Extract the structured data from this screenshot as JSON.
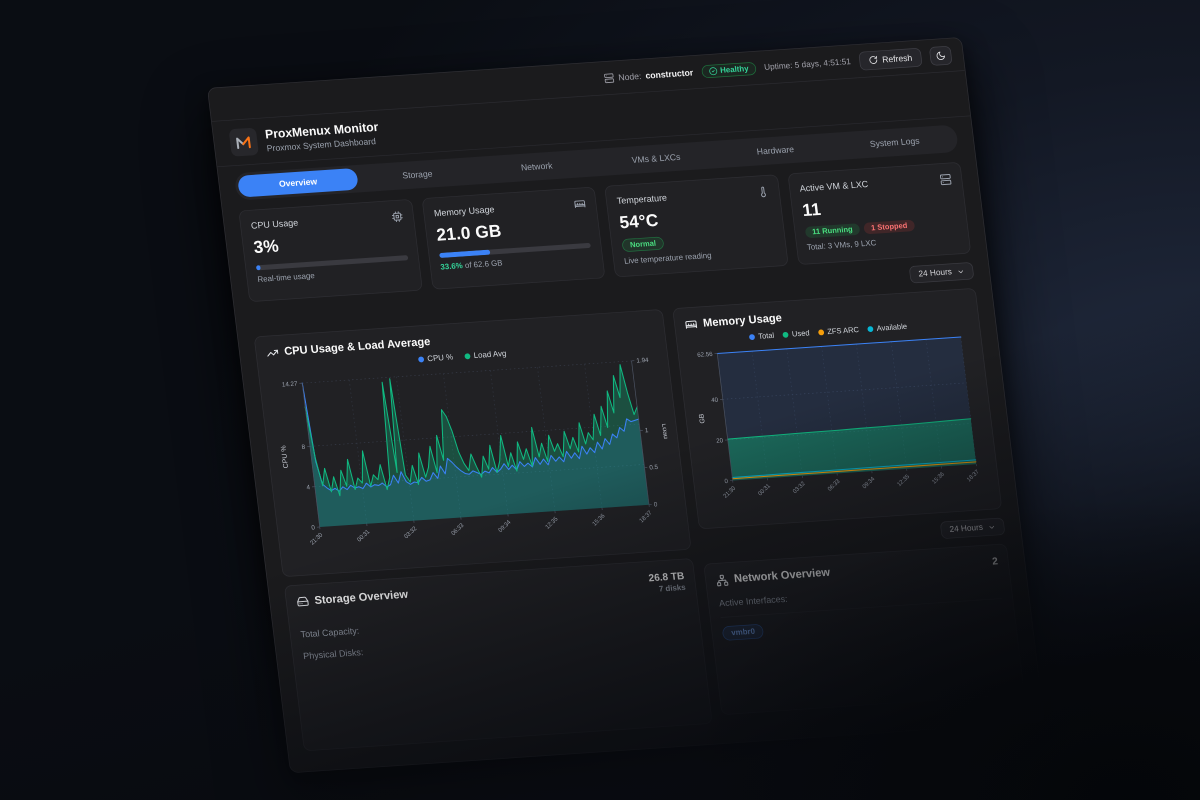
{
  "topbar": {
    "node_label": "Node:",
    "node_value": "constructor",
    "health": "Healthy",
    "uptime": "Uptime: 5 days, 4:51:51",
    "refresh": "Refresh"
  },
  "header": {
    "title": "ProxMenux Monitor",
    "subtitle": "Proxmox System Dashboard"
  },
  "tabs": [
    {
      "label": "Overview",
      "active": true
    },
    {
      "label": "Storage",
      "active": false
    },
    {
      "label": "Network",
      "active": false
    },
    {
      "label": "VMs & LXCs",
      "active": false
    },
    {
      "label": "Hardware",
      "active": false
    },
    {
      "label": "System Logs",
      "active": false
    }
  ],
  "stats": {
    "cpu": {
      "label": "CPU Usage",
      "value": "3%",
      "percent": 3,
      "subtext": "Real-time usage"
    },
    "memory": {
      "label": "Memory Usage",
      "value": "21.0 GB",
      "percent": 33.6,
      "used_pct": "33.6%",
      "of_text": "of 62.6 GB"
    },
    "temperature": {
      "label": "Temperature",
      "value": "54°C",
      "status": "Normal",
      "subtext": "Live temperature reading"
    },
    "vm": {
      "label": "Active VM & LXC",
      "value": "11",
      "running": "11 Running",
      "stopped": "1 Stopped",
      "subtext": "Total: 3 VMs, 9 LXC"
    }
  },
  "time_range": {
    "label": "24 Hours"
  },
  "time_range2": {
    "label": "24 Hours"
  },
  "storage": {
    "title": "Storage Overview",
    "summary_value": "26.8 TB",
    "summary_sub": "7 disks",
    "rows": [
      {
        "label": "Total Capacity:"
      },
      {
        "label": "Physical Disks:"
      }
    ]
  },
  "network": {
    "title": "Network Overview",
    "summary_value": "2",
    "rows": [
      {
        "label": "Active Interfaces:"
      }
    ],
    "badge": "vmbr0"
  },
  "colors": {
    "accent": "#3b82f6",
    "green": "#10b981",
    "amber": "#f59e0b",
    "cyan": "#06b6d4",
    "healthy": "#34d399",
    "danger": "#f87171"
  },
  "chart_data": [
    {
      "type": "line",
      "title": "CPU Usage & Load Average",
      "x_ticks": [
        "21:30",
        "00:31",
        "03:32",
        "06:33",
        "09:34",
        "12:35",
        "15:36",
        "18:37"
      ],
      "left_axis": {
        "label": "CPU %",
        "ticks": [
          0,
          4,
          8
        ],
        "max_tick": 14.27
      },
      "right_axis": {
        "label": "Load",
        "ticks": [
          0,
          0.5,
          1
        ],
        "max_tick": 1.94
      },
      "grid": true,
      "legend_position": "top",
      "series": [
        {
          "name": "CPU %",
          "color": "#3b82f6",
          "axis": "left",
          "fill": "rgba(59,130,246,0.20)",
          "values": [
            14.27,
            6.5,
            4.2,
            3.8,
            3.5,
            3.7,
            3.4,
            3.8,
            3.5,
            3.9,
            3.6,
            3.7,
            3.5,
            4.0,
            3.6,
            3.8,
            3.7,
            3.9,
            3.5,
            3.7,
            4.6,
            3.8,
            4.9,
            3.9,
            3.6,
            3.8,
            3.7,
            4.2,
            3.8,
            3.9,
            4.6,
            4.0,
            5.2,
            4.4,
            5.9,
            5.5,
            5.0,
            4.6,
            4.3,
            4.2,
            4.5,
            4.3,
            4.1,
            4.4,
            4.2,
            4.7,
            4.2,
            4.5,
            5.0,
            4.4,
            4.8,
            4.3,
            5.1,
            4.6,
            4.9,
            4.5,
            5.4,
            4.7,
            5.2,
            4.6,
            5.5,
            4.9,
            5.3,
            4.8,
            5.8,
            5.1,
            5.6,
            5.0,
            6.2,
            5.4,
            6.0,
            5.5,
            6.5,
            5.8,
            6.8,
            6.2,
            7.2,
            6.8,
            7.8,
            7.4,
            8.6,
            8.3,
            8.4,
            8.5
          ]
        },
        {
          "name": "Load Avg",
          "color": "#10b981",
          "axis": "right",
          "fill": "rgba(16,185,129,0.30)",
          "values": [
            1.62,
            0.92,
            0.55,
            0.78,
            0.46,
            0.66,
            0.4,
            0.74,
            0.52,
            0.88,
            0.47,
            0.62,
            0.55,
            0.98,
            0.5,
            0.65,
            0.58,
            0.78,
            0.44,
            0.6,
            1.88,
            0.66,
            1.92,
            0.62,
            0.52,
            0.74,
            0.48,
            0.9,
            0.57,
            0.7,
            0.98,
            0.62,
            1.12,
            0.78,
            1.46,
            1.36,
            1.16,
            0.88,
            0.72,
            0.62,
            0.84,
            0.67,
            0.52,
            0.8,
            0.62,
            0.94,
            0.57,
            0.72,
            1.06,
            0.64,
            0.82,
            0.57,
            0.96,
            0.72,
            0.86,
            0.62,
            1.14,
            0.74,
            0.92,
            0.67,
            1.02,
            0.8,
            0.9,
            0.72,
            1.06,
            0.82,
            0.97,
            0.77,
            1.16,
            0.87,
            1.02,
            0.92,
            1.26,
            0.97,
            1.36,
            1.07,
            1.56,
            1.26,
            1.76,
            1.46,
            1.9,
            1.52,
            1.22,
            1.32
          ]
        }
      ]
    },
    {
      "type": "area",
      "title": "Memory Usage",
      "x_ticks": [
        "21:30",
        "00:31",
        "03:32",
        "06:33",
        "09:34",
        "12:35",
        "15:36",
        "18:37"
      ],
      "left_axis": {
        "label": "GB",
        "ticks": [
          0,
          20,
          40
        ],
        "max_tick": 62.56
      },
      "grid": true,
      "legend_position": "top",
      "series": [
        {
          "name": "Total",
          "color": "#3b82f6",
          "axis": "left",
          "fill": "rgba(59,130,246,0.13)",
          "values": [
            62.56,
            62.56,
            62.56,
            62.56,
            62.56,
            62.56,
            62.56,
            62.56,
            62.56,
            62.56,
            62.56,
            62.56
          ]
        },
        {
          "name": "Used",
          "color": "#10b981",
          "axis": "left",
          "fill": "rgba(16,185,129,0.42)",
          "values": [
            20.4,
            20.6,
            20.7,
            20.9,
            21.0,
            21.1,
            21.3,
            21.4,
            21.6,
            21.8,
            22.1,
            22.3
          ]
        },
        {
          "name": "ZFS ARC",
          "color": "#f59e0b",
          "axis": "left",
          "values": [
            0.9,
            0.92,
            0.94,
            0.95,
            0.97,
            0.98,
            1.0,
            1.02,
            1.04,
            1.05,
            1.08,
            1.1
          ]
        },
        {
          "name": "Available",
          "color": "#06b6d4",
          "axis": "left",
          "values": [
            1.5,
            1.55,
            1.6,
            1.65,
            1.7,
            1.75,
            1.8,
            1.85,
            1.9,
            1.95,
            2.0,
            2.05
          ]
        }
      ]
    }
  ]
}
